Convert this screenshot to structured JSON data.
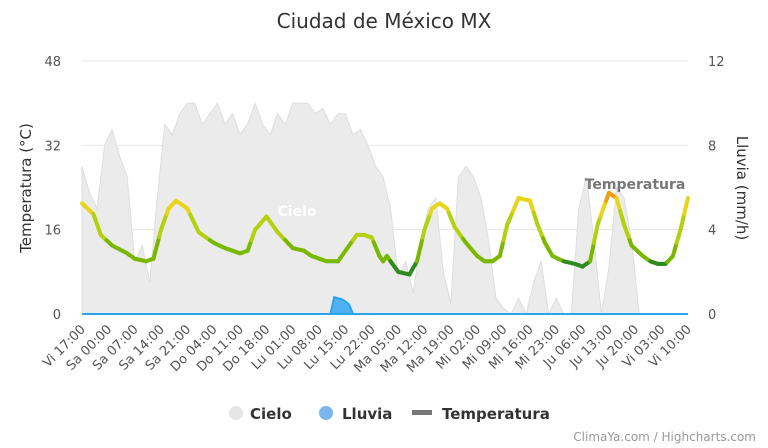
{
  "chart": {
    "title": "Ciudad de México MX",
    "credits": "ClimaYa.com / Highcharts.com",
    "legend": [
      {
        "name": "Cielo",
        "color": "#e6e6e6",
        "symbol": "circle"
      },
      {
        "name": "Lluvia",
        "color": "#7cb5ec",
        "symbol": "circle"
      },
      {
        "name": "Temperatura",
        "color": "#777777",
        "symbol": "line"
      }
    ],
    "inline_labels": {
      "cielo": "Cielo",
      "temperatura": "Temperatura"
    }
  },
  "chart_data": {
    "type": "line",
    "title": "Ciudad de México MX",
    "x_unit": "hour",
    "x_range": [
      0,
      161
    ],
    "categories": [
      "Vi 17:00",
      "Sa 00:00",
      "Sa 07:00",
      "Sa 14:00",
      "Sa 21:00",
      "Do 04:00",
      "Do 11:00",
      "Do 18:00",
      "Lu 01:00",
      "Lu 08:00",
      "Lu 15:00",
      "Lu 22:00",
      "Ma 05:00",
      "Ma 12:00",
      "Ma 19:00",
      "Mi 02:00",
      "Mi 09:00",
      "Mi 16:00",
      "Mi 23:00",
      "Ju 06:00",
      "Ju 13:00",
      "Ju 20:00",
      "Vi 03:00",
      "Vi 10:00"
    ],
    "y_left": {
      "label": "Temperatura (°C)",
      "range": [
        0,
        48
      ],
      "ticks": [
        0,
        16,
        32,
        48
      ]
    },
    "y_right": {
      "label": "Lluvia (mm/h)",
      "range": [
        0,
        12
      ],
      "ticks": [
        0,
        4,
        8,
        12
      ]
    },
    "grid": true,
    "legend_position": "bottom",
    "series": [
      {
        "name": "Temperatura",
        "axis": "left",
        "type": "line",
        "x": [
          0,
          3,
          5,
          8,
          12,
          14,
          17,
          19,
          21,
          23,
          25,
          28,
          31,
          35,
          38,
          40,
          42,
          44,
          46,
          49,
          52,
          56,
          59,
          61,
          63,
          65,
          68,
          71,
          73,
          75,
          77,
          79,
          80,
          81,
          82,
          84,
          87,
          89,
          91,
          93,
          95,
          97,
          99,
          102,
          105,
          107,
          109,
          111,
          113,
          116,
          119,
          121,
          123,
          125,
          128,
          131,
          133,
          135,
          137,
          140,
          142,
          144,
          146,
          149,
          151,
          153,
          155,
          157,
          159,
          161
        ],
        "values": [
          21,
          19,
          15,
          13,
          11.5,
          10.5,
          10,
          10.5,
          16,
          20,
          21.5,
          20,
          15.5,
          13.5,
          12.5,
          12,
          11.5,
          12,
          16,
          18.5,
          15.5,
          12.5,
          12,
          11,
          10.5,
          10,
          10,
          13,
          15,
          15,
          14.5,
          11,
          10,
          11,
          10,
          8,
          7.5,
          10,
          16,
          20,
          21,
          20,
          16.5,
          13.5,
          11,
          10,
          10,
          11,
          17,
          22,
          21.5,
          17,
          13.5,
          11,
          10,
          9.5,
          9,
          10,
          17,
          23,
          22,
          17,
          13,
          11,
          10,
          9.5,
          9.5,
          11,
          16,
          22
        ]
      },
      {
        "name": "Lluvia",
        "axis": "right",
        "type": "area",
        "x": [
          0,
          66,
          67,
          68,
          69,
          70,
          71,
          72,
          161
        ],
        "values": [
          0,
          0,
          0.8,
          0.75,
          0.7,
          0.6,
          0.45,
          0,
          0
        ]
      },
      {
        "name": "Cielo",
        "axis": "left",
        "type": "area",
        "x": [
          0,
          2,
          4,
          6,
          8,
          10,
          12,
          14,
          16,
          18,
          20,
          22,
          24,
          26,
          28,
          30,
          32,
          34,
          36,
          38,
          40,
          42,
          44,
          46,
          48,
          50,
          52,
          54,
          56,
          58,
          60,
          62,
          64,
          66,
          68,
          70,
          72,
          74,
          76,
          78,
          80,
          82,
          84,
          86,
          88,
          90,
          92,
          94,
          96,
          98,
          100,
          102,
          104,
          106,
          108,
          110,
          112,
          114,
          116,
          118,
          120,
          122,
          124,
          126,
          128,
          130,
          132,
          134,
          136,
          138,
          140,
          142,
          144,
          146,
          148,
          150,
          152,
          154,
          156,
          158,
          160,
          161
        ],
        "values": [
          28,
          23,
          20,
          32,
          35,
          30,
          26,
          10,
          13,
          6,
          22,
          36,
          34,
          38,
          40,
          40,
          36,
          38,
          40,
          36,
          38,
          34,
          36,
          40,
          36,
          34,
          38,
          36,
          40,
          40,
          40,
          38,
          39,
          36,
          38,
          38,
          34,
          35,
          32,
          28,
          26,
          20,
          7,
          10,
          4,
          14,
          20,
          22,
          8,
          2,
          26,
          28,
          26,
          22,
          14,
          3,
          1,
          0,
          3,
          0,
          6,
          10,
          0,
          3,
          0,
          0,
          20,
          26,
          14,
          0,
          9,
          24,
          22,
          14,
          0,
          0,
          0,
          0,
          0,
          0,
          0,
          0
        ]
      }
    ]
  }
}
